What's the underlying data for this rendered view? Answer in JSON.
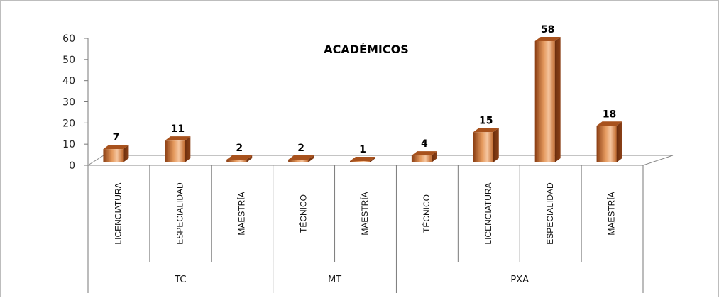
{
  "chart_data": {
    "type": "bar",
    "title": "ACADÉMICOS",
    "ylim": [
      0,
      60
    ],
    "yticks": [
      "0",
      "10",
      "20",
      "30",
      "40",
      "50",
      "60"
    ],
    "categories": [
      "LICENCIATURA",
      "ESPECIALIDAD",
      "MAESTRÍA",
      "TÉCNICO",
      "MAESTRÍA",
      "TÉCNICO",
      "LICENCIATURA",
      "ESPECIALIDAD",
      "MAESTRÍA"
    ],
    "groups": [
      {
        "label": "TC",
        "count": 3
      },
      {
        "label": "MT",
        "count": 2
      },
      {
        "label": "PXA",
        "count": 4
      }
    ],
    "values": [
      7,
      11,
      2,
      2,
      1,
      4,
      15,
      58,
      18
    ],
    "data_labels": [
      "7",
      "11",
      "2",
      "2",
      "1",
      "4",
      "15",
      "58",
      "18"
    ],
    "bar_color": "#c8692a",
    "grid": false,
    "legend": "none"
  }
}
